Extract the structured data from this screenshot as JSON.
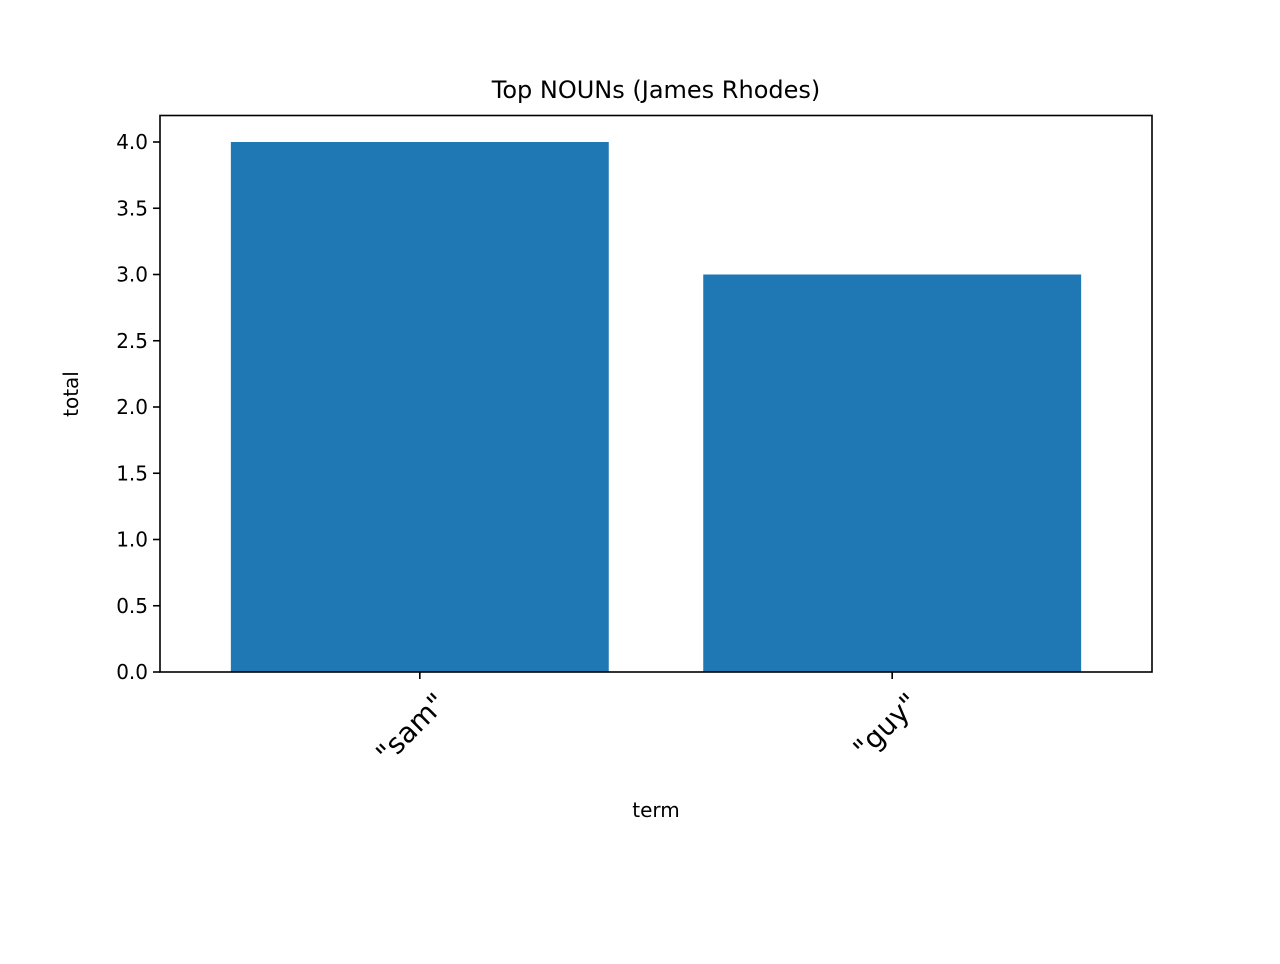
{
  "chart_data": {
    "type": "bar",
    "title": "Top NOUNs (James Rhodes)",
    "xlabel": "term",
    "ylabel": "total",
    "categories": [
      "\"sam\"",
      "\"guy\""
    ],
    "values": [
      4,
      3
    ],
    "ylim": [
      0,
      4.2
    ],
    "yticks": [
      "0.0",
      "0.5",
      "1.0",
      "1.5",
      "2.0",
      "2.5",
      "3.0",
      "3.5",
      "4.0"
    ],
    "bar_color": "#1f77b4",
    "grid": false,
    "legend": "none"
  }
}
